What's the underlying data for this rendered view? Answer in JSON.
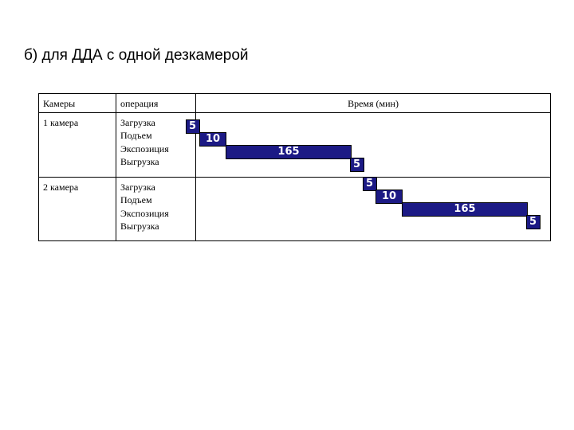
{
  "title": "б) для ДДА с одной дезкамерой",
  "table": {
    "headers": {
      "cameras": "Камеры",
      "operation": "операция",
      "time": "Время (мин)"
    },
    "rows": [
      {
        "camera": "1 камера",
        "operations": [
          "Загрузка",
          "Подъем",
          "Экспозиция",
          "Выгрузка"
        ]
      },
      {
        "camera": "2 камера",
        "operations": [
          "Загрузка",
          "Подъем",
          "Экспозиция",
          "Выгрузка"
        ]
      }
    ]
  },
  "gantt": {
    "bar_color": "#1c1a85",
    "label_color": "#ffffff",
    "bars": [
      {
        "camera": "1 камера",
        "operation": "Загрузка",
        "duration_label": "5"
      },
      {
        "camera": "1 камера",
        "operation": "Подъем",
        "duration_label": "10"
      },
      {
        "camera": "1 камера",
        "operation": "Экспозиция",
        "duration_label": "165"
      },
      {
        "camera": "1 камера",
        "operation": "Выгрузка",
        "duration_label": "5"
      },
      {
        "camera": "2 камера",
        "operation": "Загрузка",
        "duration_label": "5"
      },
      {
        "camera": "2 камера",
        "operation": "Подъем",
        "duration_label": "10"
      },
      {
        "camera": "2 камера",
        "operation": "Экспозиция",
        "duration_label": "165"
      },
      {
        "camera": "2 камера",
        "operation": "Выгрузка",
        "duration_label": "5"
      }
    ]
  }
}
